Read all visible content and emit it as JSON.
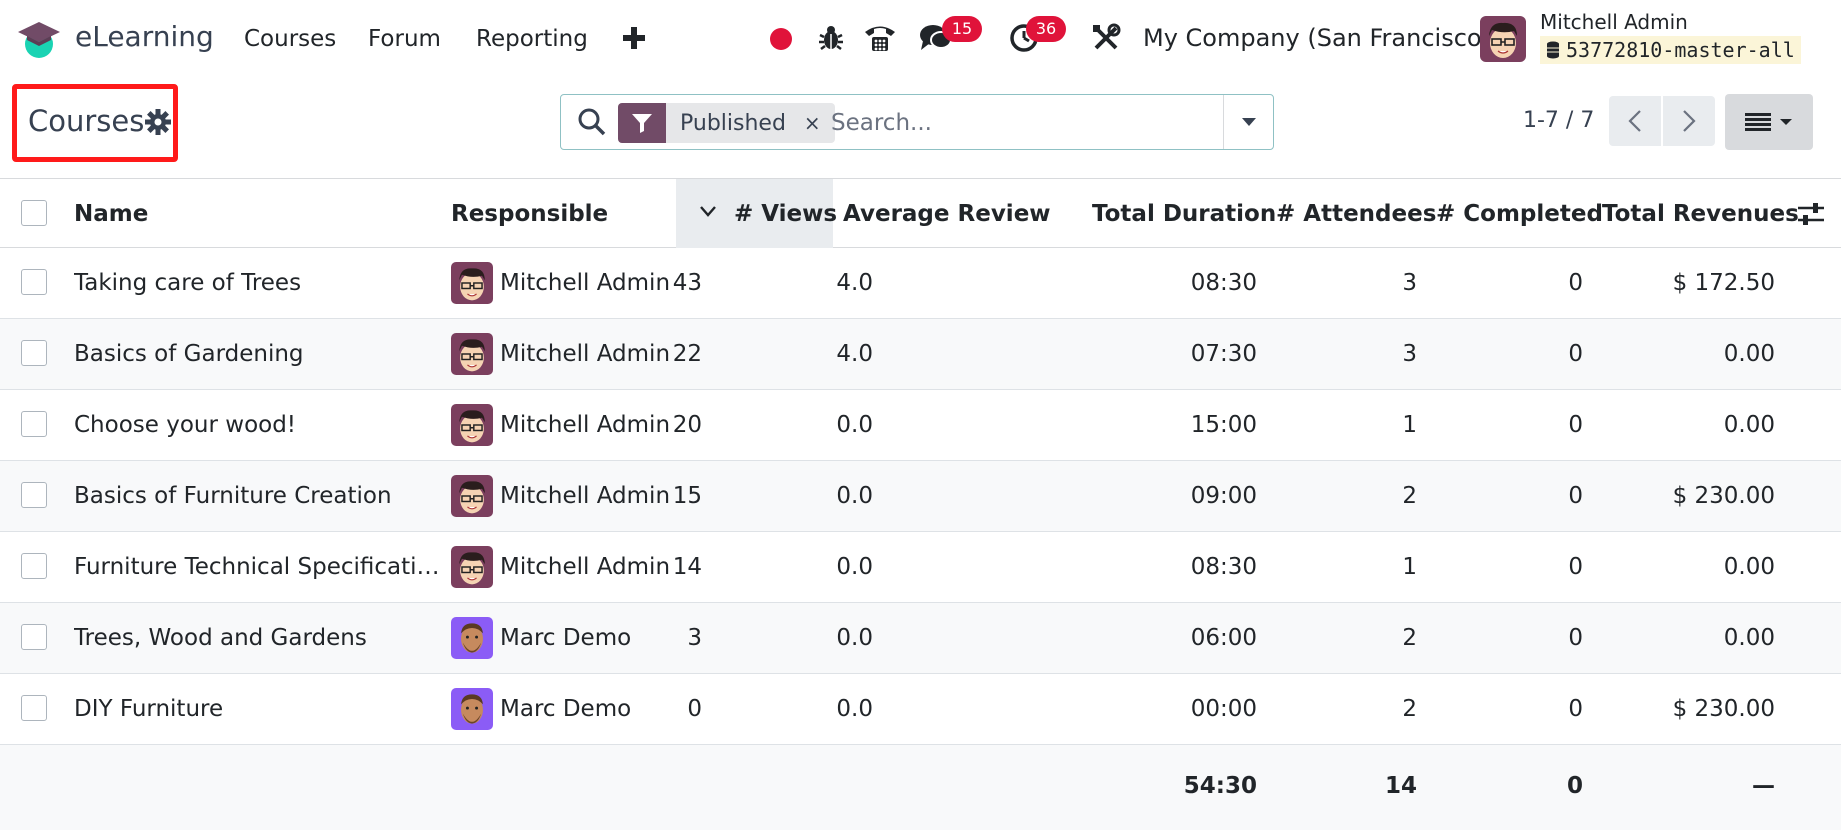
{
  "navbar": {
    "app_name": "eLearning",
    "menu": [
      "Courses",
      "Forum",
      "Reporting"
    ],
    "plus_icon": "plus-icon",
    "messages_badge": "15",
    "activities_badge": "36",
    "company": "My Company (San Francisco)",
    "user_name": "Mitchell Admin",
    "database": "53772810-master-all"
  },
  "control_panel": {
    "title": "Courses",
    "search": {
      "facet_label": "Published",
      "facet_remove": "×",
      "placeholder": "Search..."
    },
    "pager": "1-7 / 7"
  },
  "table": {
    "columns": {
      "name": "Name",
      "responsible": "Responsible",
      "views": "# Views",
      "avg_review": "Average Review",
      "duration": "Total Duration",
      "attendees": "# Attendees",
      "completed": "# Completed",
      "revenues": "Total Revenues"
    },
    "rows": [
      {
        "name": "Taking care of Trees",
        "responsible": "Mitchell Admin",
        "views": "43",
        "avg_review": "4.0",
        "duration": "08:30",
        "attendees": "3",
        "completed": "0",
        "revenues": "$ 172.50"
      },
      {
        "name": "Basics of Gardening",
        "responsible": "Mitchell Admin",
        "views": "22",
        "avg_review": "4.0",
        "duration": "07:30",
        "attendees": "3",
        "completed": "0",
        "revenues": "0.00"
      },
      {
        "name": "Choose your wood!",
        "responsible": "Mitchell Admin",
        "views": "20",
        "avg_review": "0.0",
        "duration": "15:00",
        "attendees": "1",
        "completed": "0",
        "revenues": "0.00"
      },
      {
        "name": "Basics of Furniture Creation",
        "responsible": "Mitchell Admin",
        "views": "15",
        "avg_review": "0.0",
        "duration": "09:00",
        "attendees": "2",
        "completed": "0",
        "revenues": "$ 230.00"
      },
      {
        "name": "Furniture Technical Specificati…",
        "responsible": "Mitchell Admin",
        "views": "14",
        "avg_review": "0.0",
        "duration": "08:30",
        "attendees": "1",
        "completed": "0",
        "revenues": "0.00"
      },
      {
        "name": "Trees, Wood and Gardens",
        "responsible": "Marc Demo",
        "views": "3",
        "avg_review": "0.0",
        "duration": "06:00",
        "attendees": "2",
        "completed": "0",
        "revenues": "0.00"
      },
      {
        "name": "DIY Furniture",
        "responsible": "Marc Demo",
        "views": "0",
        "avg_review": "0.0",
        "duration": "00:00",
        "attendees": "2",
        "completed": "0",
        "revenues": "$ 230.00"
      }
    ],
    "totals": {
      "duration": "54:30",
      "attendees": "14",
      "completed": "0",
      "revenues": "—"
    }
  },
  "colors": {
    "brand": "#714b67",
    "badge": "#e0133a",
    "highlight_border": "#ff1a1a"
  }
}
